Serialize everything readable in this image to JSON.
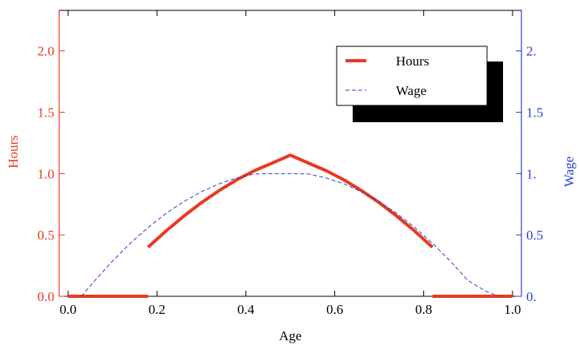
{
  "chart_data": {
    "type": "line",
    "title": "",
    "xlabel": "Age",
    "ylabel_left": "Hours",
    "ylabel_right": "Wage",
    "xlim": [
      -0.02,
      1.02
    ],
    "ylim_left": [
      0,
      2.33
    ],
    "ylim_right": [
      0,
      2.33
    ],
    "x_ticks": [
      "0.0",
      "0.2",
      "0.4",
      "0.6",
      "0.8",
      "1.0"
    ],
    "x_tick_values": [
      0,
      0.2,
      0.4,
      0.6,
      0.8,
      1.0
    ],
    "y_left_ticks": [
      "0.0",
      "0.5",
      "1.0",
      "1.5",
      "2.0"
    ],
    "y_left_tick_values": [
      0,
      0.5,
      1.0,
      1.5,
      2.0
    ],
    "y_right_ticks": [
      "0.",
      "0.5",
      "1.",
      "1.5",
      "2."
    ],
    "y_right_tick_values": [
      0,
      0.5,
      1.0,
      1.5,
      2.0
    ],
    "grid": false,
    "legend_position": "top-right",
    "colors": {
      "hours": "#e8391f",
      "wage": "#2b3fd6",
      "axis_left": "#e8391f",
      "axis_right": "#2b3fd6",
      "frame": "#000000"
    },
    "series": [
      {
        "name": "Hours",
        "axis": "left",
        "style": "solid-thick",
        "segments": [
          {
            "x": [
              0.0,
              0.18
            ],
            "y": [
              0.0,
              0.0
            ]
          },
          {
            "x": [
              0.18,
              0.22,
              0.26,
              0.3,
              0.34,
              0.38,
              0.42,
              0.46,
              0.5,
              0.54,
              0.58,
              0.62,
              0.66,
              0.7,
              0.74,
              0.78,
              0.82
            ],
            "y": [
              0.4,
              0.531,
              0.652,
              0.763,
              0.862,
              0.95,
              1.025,
              1.087,
              1.15,
              1.087,
              1.025,
              0.95,
              0.862,
              0.763,
              0.652,
              0.531,
              0.4
            ]
          },
          {
            "x": [
              0.82,
              1.0
            ],
            "y": [
              0.0,
              0.0
            ]
          }
        ]
      },
      {
        "name": "Wage",
        "axis": "right",
        "style": "dashed-thin",
        "segments": [
          {
            "x": [
              0.03,
              0.06,
              0.1,
              0.14,
              0.18,
              0.22,
              0.26,
              0.3,
              0.34,
              0.38,
              0.42,
              0.46,
              0.5,
              0.54,
              0.58,
              0.62,
              0.66,
              0.7,
              0.74,
              0.78,
              0.82,
              0.86,
              0.9,
              0.94,
              0.97
            ],
            "y": [
              0.0,
              0.128,
              0.287,
              0.432,
              0.561,
              0.674,
              0.771,
              0.852,
              0.917,
              0.965,
              0.997,
              1.0,
              1.0,
              0.997,
              0.965,
              0.917,
              0.852,
              0.771,
              0.674,
              0.561,
              0.432,
              0.287,
              0.128,
              0.041,
              0.0
            ]
          }
        ]
      }
    ]
  }
}
